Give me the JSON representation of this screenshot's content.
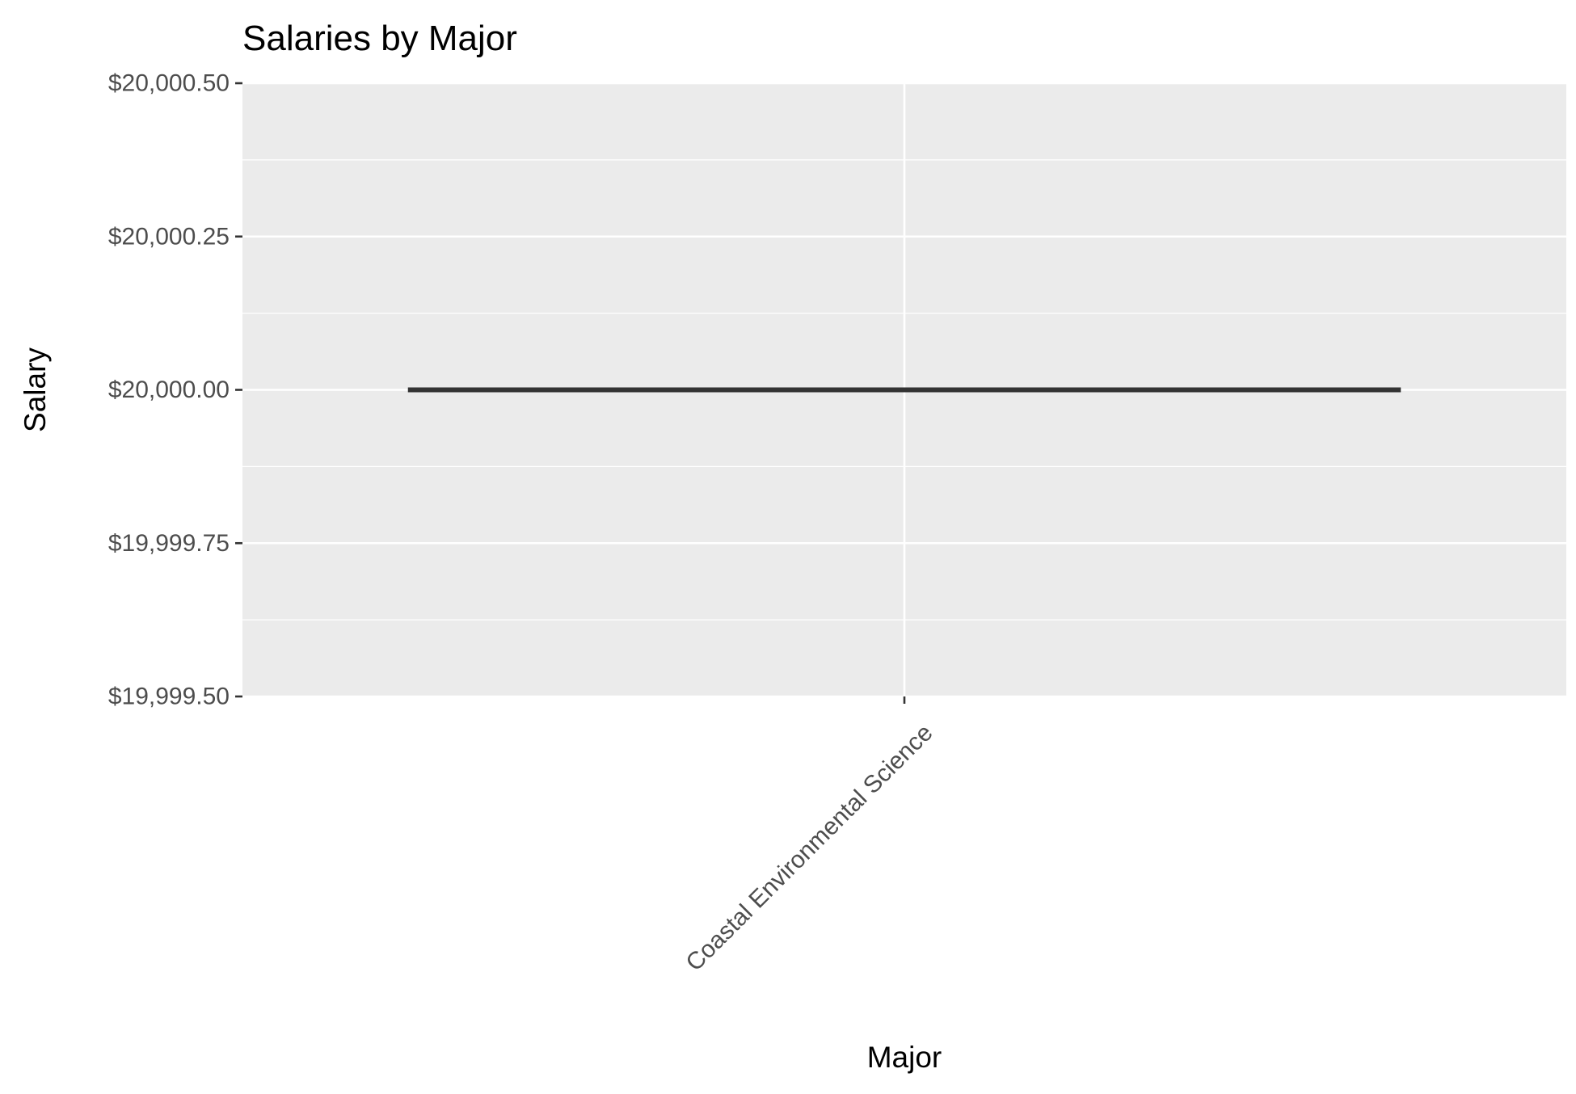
{
  "chart_data": {
    "type": "box",
    "title": "Salaries by Major",
    "xlabel": "Major",
    "ylabel": "Salary",
    "categories": [
      "Coastal Environmental Science"
    ],
    "boxes": [
      {
        "category": "Coastal Environmental Science",
        "min": 20000,
        "q1": 20000,
        "median": 20000,
        "q3": 20000,
        "max": 20000
      }
    ],
    "ylim": [
      19999.5,
      20000.5
    ],
    "yticks": [
      19999.5,
      19999.75,
      20000,
      20000.25,
      20000.5
    ],
    "ytick_labels": [
      "$19,999.50",
      "$19,999.75",
      "$20,000.00",
      "$20,000.25",
      "$20,000.50"
    ],
    "grid": true,
    "colors": {
      "panel_background": "#EBEBEB",
      "grid_major": "#FFFFFF",
      "grid_minor": "#F5F5F5",
      "box_line": "#333333",
      "tick_label": "#4D4D4D",
      "title": "#000000"
    }
  }
}
